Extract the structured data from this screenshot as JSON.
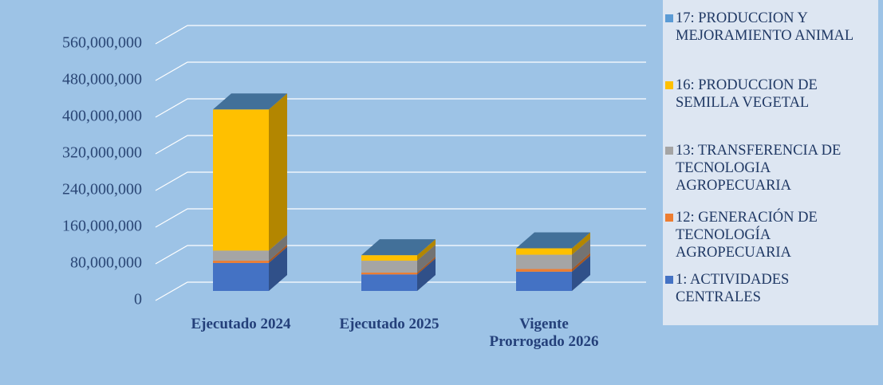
{
  "chart_data": {
    "type": "bar3d_stacked",
    "categories": [
      "Ejecutado 2024",
      "Ejecutado 2025",
      "Vigente Prorrogado 2026"
    ],
    "series": [
      {
        "name": "1: ACTIVIDADES CENTRALES",
        "color": "#4472c4",
        "values": [
          61000000,
          36000000,
          42000000
        ]
      },
      {
        "name": "12: GENERACIÓN DE TECNOLOGÍA AGROPECUARIA",
        "color": "#ed7d31",
        "values": [
          5000000,
          4000000,
          6000000
        ]
      },
      {
        "name": "13: TRANSFERENCIA DE TECNOLOGIA AGROPECUARIA",
        "color": "#a5a5a5",
        "values": [
          22000000,
          26000000,
          31000000
        ]
      },
      {
        "name": "16: PRODUCCION DE SEMILLA VEGETAL",
        "color": "#ffc000",
        "values": [
          308000000,
          12000000,
          14000000
        ]
      },
      {
        "name": "17: PRODUCCION Y MEJORAMIENTO ANIMAL",
        "color": "#5b9bd5",
        "values": [
          0,
          0,
          0
        ]
      }
    ],
    "ylim": [
      0,
      560000000
    ],
    "yticks": [
      0,
      {
        "value": 80000000,
        "label": "80,000,000"
      },
      {
        "value": 160000000,
        "label": "160,000,000"
      },
      {
        "value": 240000000,
        "label": "240,000,000"
      },
      {
        "value": 320000000,
        "label": "320,000,000"
      },
      {
        "value": 400000000,
        "label": "400,000,000"
      },
      {
        "value": 480000000,
        "label": "480,000,000"
      },
      {
        "value": 560000000,
        "label": "560,000,000"
      }
    ],
    "grid": true,
    "legend": "right"
  }
}
